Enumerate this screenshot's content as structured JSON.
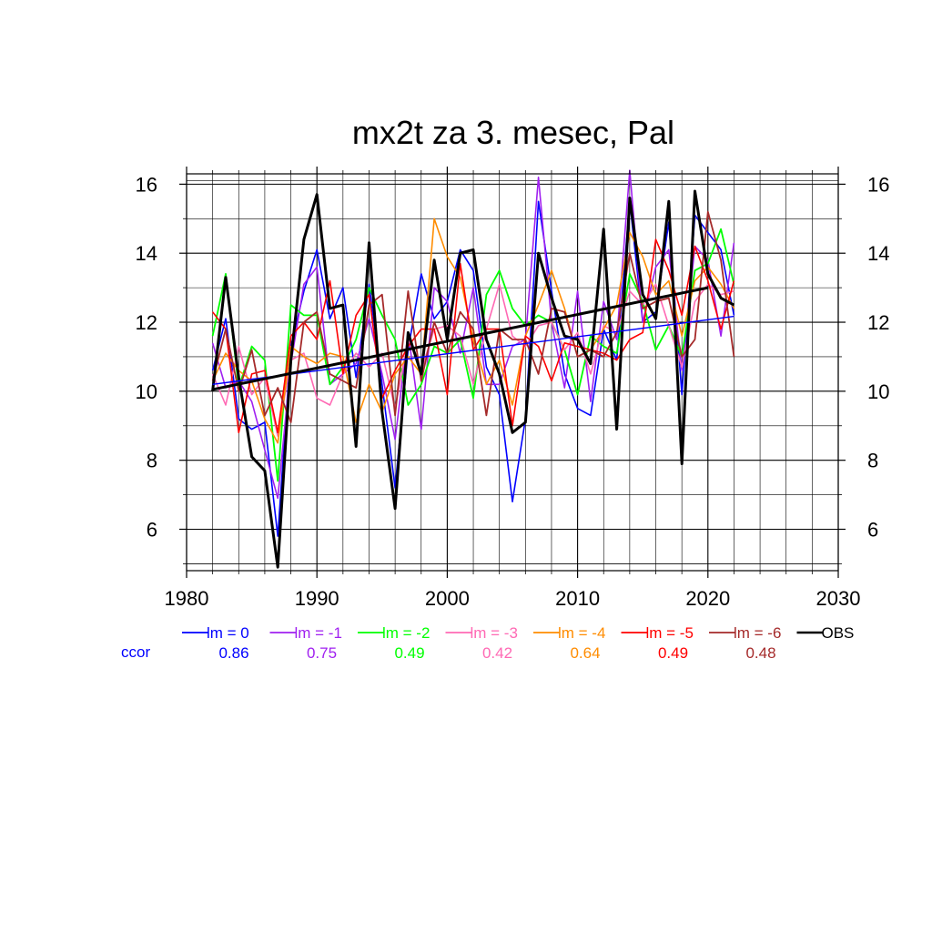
{
  "chart_data": {
    "type": "line",
    "title": "mx2t za 3. mesec, Pal",
    "xlabel": "",
    "ylabel": "",
    "xlim": [
      1980,
      2030
    ],
    "ylim": [
      4.8,
      16.3
    ],
    "xticks": [
      1980,
      1990,
      2000,
      2010,
      2020,
      2030
    ],
    "yticks": [
      6,
      8,
      10,
      12,
      14,
      16
    ],
    "grid": true,
    "years": [
      1982,
      1983,
      1984,
      1985,
      1986,
      1987,
      1988,
      1989,
      1990,
      1991,
      1992,
      1993,
      1994,
      1995,
      1996,
      1997,
      1998,
      1999,
      2000,
      2001,
      2002,
      2003,
      2004,
      2005,
      2006,
      2007,
      2008,
      2009,
      2010,
      2011,
      2012,
      2013,
      2014,
      2015,
      2016,
      2017,
      2018,
      2019,
      2020,
      2021,
      2022
    ],
    "series": [
      {
        "name": "lm = 0",
        "color": "#0000ff",
        "width": 1.6,
        "values": [
          10.6,
          12.1,
          9.2,
          8.9,
          9.1,
          5.8,
          11.3,
          12.9,
          14.1,
          12.1,
          13.0,
          10.4,
          13.1,
          10.2,
          7.2,
          11.2,
          13.4,
          12.1,
          12.6,
          14.1,
          13.5,
          10.7,
          9.9,
          6.8,
          9.2,
          15.5,
          12.9,
          10.5,
          9.5,
          9.3,
          11.8,
          10.9,
          15.5,
          12.0,
          12.3,
          14.9,
          9.9,
          15.1,
          14.6,
          14.1,
          12.2
        ]
      },
      {
        "name": "lm = -1",
        "color": "#a020f0",
        "width": 1.6,
        "values": [
          11.4,
          10.1,
          10.3,
          9.7,
          8.3,
          6.9,
          10.8,
          13.1,
          13.6,
          10.2,
          10.5,
          10.8,
          12.1,
          10.5,
          8.6,
          11.7,
          8.9,
          13.0,
          12.6,
          11.1,
          13.0,
          10.2,
          10.2,
          11.3,
          11.5,
          16.2,
          12.0,
          10.1,
          12.9,
          9.7,
          12.6,
          11.5,
          16.4,
          12.0,
          13.6,
          14.1,
          10.6,
          14.2,
          13.8,
          11.6,
          14.3
        ]
      },
      {
        "name": "lm = -2",
        "color": "#00ff00",
        "width": 1.8,
        "values": [
          11.6,
          13.4,
          10.1,
          11.3,
          10.9,
          7.4,
          12.5,
          12.2,
          12.2,
          10.2,
          10.7,
          11.5,
          13.0,
          12.2,
          11.5,
          9.6,
          10.2,
          11.3,
          11.1,
          11.5,
          9.8,
          12.8,
          13.5,
          12.4,
          11.9,
          12.2,
          12.0,
          11.2,
          9.9,
          11.6,
          11.3,
          11.1,
          13.4,
          12.6,
          11.2,
          11.9,
          11.0,
          13.5,
          13.7,
          14.7,
          13.1
        ]
      },
      {
        "name": "lm = -3",
        "color": "#ff69b4",
        "width": 1.6,
        "values": [
          10.5,
          9.6,
          11.3,
          9.9,
          10.4,
          8.7,
          10.9,
          11.1,
          9.8,
          9.6,
          10.5,
          11.1,
          10.7,
          11.1,
          9.5,
          11.5,
          10.6,
          11.8,
          11.9,
          11.6,
          10.2,
          11.8,
          13.1,
          11.6,
          11.3,
          11.9,
          12.0,
          11.2,
          11.7,
          10.5,
          11.9,
          11.7,
          12.9,
          12.5,
          13.1,
          11.9,
          10.7,
          12.6,
          13.1,
          12.8,
          12.9
        ]
      },
      {
        "name": "lm = -4",
        "color": "#ff8c00",
        "width": 1.6,
        "values": [
          10.3,
          11.1,
          10.6,
          10.3,
          9.2,
          8.5,
          11.3,
          11.0,
          10.8,
          11.1,
          11.0,
          9.1,
          10.2,
          9.4,
          10.5,
          11.0,
          10.5,
          15.0,
          13.9,
          13.3,
          11.5,
          10.2,
          10.9,
          9.6,
          11.6,
          12.5,
          13.5,
          12.4,
          11.0,
          11.2,
          11.8,
          12.5,
          14.6,
          13.9,
          12.8,
          13.2,
          11.6,
          13.2,
          13.6,
          13.1,
          12.4
        ]
      },
      {
        "name": "lm = -5",
        "color": "#ff0000",
        "width": 1.6,
        "values": [
          12.3,
          11.8,
          8.8,
          10.5,
          10.6,
          8.8,
          11.6,
          12.0,
          11.5,
          13.2,
          10.5,
          12.2,
          12.8,
          9.8,
          10.6,
          11.3,
          11.8,
          11.8,
          9.9,
          13.7,
          11.2,
          11.8,
          11.8,
          9.0,
          11.6,
          11.3,
          10.3,
          11.4,
          11.3,
          11.2,
          11.1,
          10.9,
          11.5,
          11.7,
          14.4,
          13.5,
          12.2,
          14.2,
          13.2,
          11.8,
          13.2
        ]
      },
      {
        "name": "lm = -6",
        "color": "#a52a2a",
        "width": 1.8,
        "values": [
          10.3,
          11.8,
          10.0,
          11.2,
          9.3,
          10.1,
          9.1,
          12.0,
          12.3,
          10.5,
          10.3,
          10.1,
          12.5,
          12.8,
          9.3,
          12.9,
          10.3,
          12.0,
          11.1,
          12.3,
          11.8,
          9.3,
          11.8,
          11.5,
          11.5,
          10.5,
          12.4,
          12.3,
          11.0,
          11.2,
          11.0,
          11.7,
          14.0,
          12.4,
          12.6,
          12.7,
          11.0,
          11.5,
          15.2,
          13.8,
          11.0
        ]
      },
      {
        "name": "OBS",
        "color": "#000000",
        "width": 3.0,
        "values": [
          10.0,
          13.3,
          10.4,
          8.1,
          7.7,
          4.9,
          10.9,
          14.4,
          15.7,
          12.4,
          12.5,
          8.4,
          14.3,
          9.4,
          6.6,
          11.7,
          10.5,
          13.8,
          11.5,
          14.0,
          14.1,
          11.5,
          10.5,
          8.8,
          9.1,
          14.0,
          12.7,
          11.6,
          11.5,
          10.8,
          14.7,
          8.9,
          15.6,
          12.8,
          12.1,
          15.5,
          7.9,
          15.8,
          13.4,
          12.7,
          12.5
        ]
      }
    ],
    "trendlines": [
      {
        "series": "lm = 0",
        "color": "#0000ff",
        "width": 1.4,
        "x": [
          1982,
          2022
        ],
        "y": [
          10.2,
          12.17
        ]
      },
      {
        "series": "OBS",
        "color": "#000000",
        "width": 3.0,
        "x": [
          1982,
          2020
        ],
        "y": [
          10.05,
          13.0
        ]
      }
    ],
    "legend": {
      "placement": "bottom",
      "row_label": "ccor",
      "row_label_color": "#0000ff",
      "entries": [
        {
          "label": "lm = 0",
          "color": "#0000ff",
          "ccor": "0.86"
        },
        {
          "label": "lm = -1",
          "color": "#a020f0",
          "ccor": "0.75"
        },
        {
          "label": "lm = -2",
          "color": "#00ff00",
          "ccor": "0.49"
        },
        {
          "label": "lm = -3",
          "color": "#ff69b4",
          "ccor": "0.42"
        },
        {
          "label": "lm = -4",
          "color": "#ff8c00",
          "ccor": "0.64"
        },
        {
          "label": "lm = -5",
          "color": "#ff0000",
          "ccor": "0.49"
        },
        {
          "label": "lm = -6",
          "color": "#a52a2a",
          "ccor": "0.48"
        },
        {
          "label": "OBS",
          "color": "#000000",
          "ccor": ""
        }
      ]
    }
  }
}
